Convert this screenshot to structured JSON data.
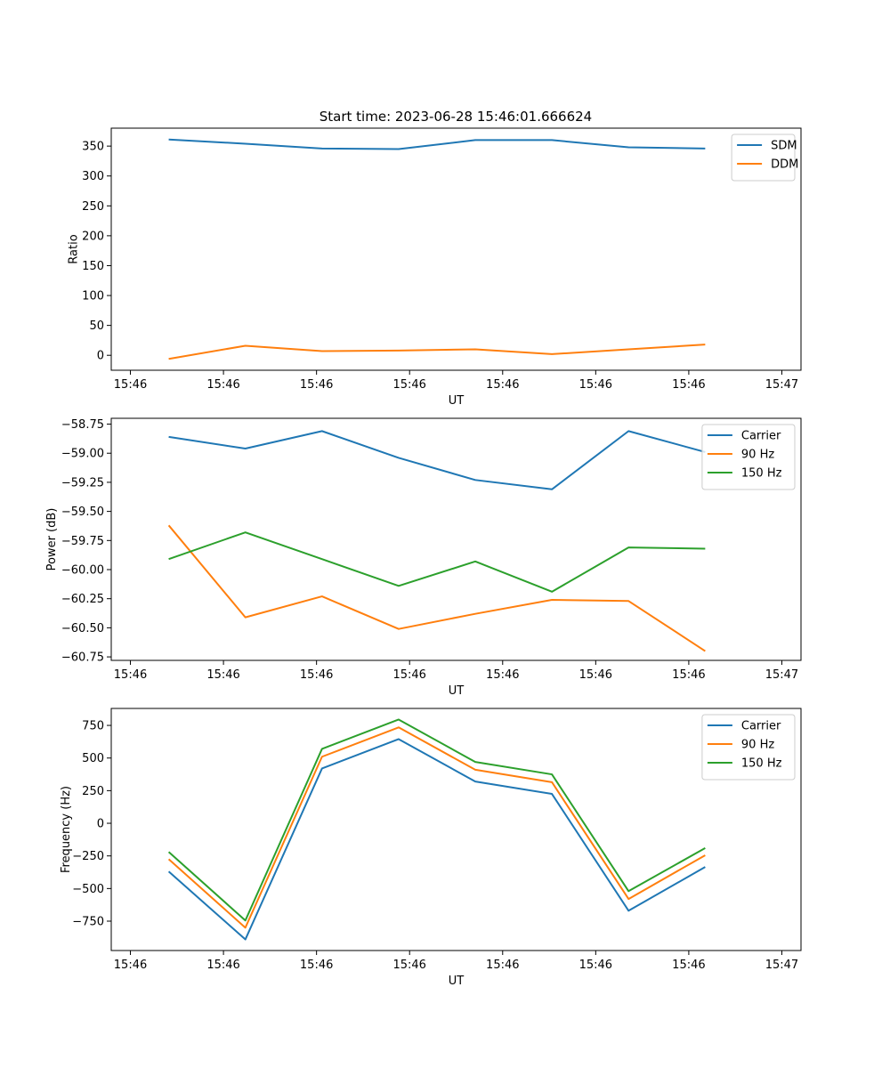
{
  "figure_title": "Start time: 2023-06-28 15:46:01.666624",
  "chart_data": [
    {
      "type": "line",
      "xlabel": "UT",
      "ylabel": "Ratio",
      "x_tick_labels": [
        "15:46",
        "15:46",
        "15:46",
        "15:46",
        "15:46",
        "15:46",
        "15:46"
      ],
      "x_tick_label_last": "15:47",
      "x": [
        1,
        2,
        3,
        4,
        5,
        6,
        7,
        8
      ],
      "xlim": [
        0.25,
        9.25
      ],
      "ylim": [
        -25,
        380
      ],
      "yticks": [
        0,
        50,
        100,
        150,
        200,
        250,
        300,
        350
      ],
      "ytick_labels": [
        "0",
        "50",
        "100",
        "150",
        "200",
        "250",
        "300",
        "350"
      ],
      "legend_position": "top-right",
      "series": [
        {
          "name": "SDM",
          "color": "#1f77b4",
          "values": [
            361,
            354,
            346,
            345,
            360,
            360,
            348,
            346
          ]
        },
        {
          "name": "DDM",
          "color": "#ff7f0e",
          "values": [
            -6,
            16,
            7,
            8,
            10,
            2,
            10,
            18
          ]
        }
      ]
    },
    {
      "type": "line",
      "xlabel": "UT",
      "ylabel": "Power (dB)",
      "x_tick_labels": [
        "15:46",
        "15:46",
        "15:46",
        "15:46",
        "15:46",
        "15:46",
        "15:46"
      ],
      "x_tick_label_last": "15:47",
      "x": [
        1,
        2,
        3,
        4,
        5,
        6,
        7,
        8
      ],
      "xlim": [
        0.25,
        9.25
      ],
      "ylim": [
        -60.78,
        -58.7
      ],
      "yticks": [
        -60.75,
        -60.5,
        -60.25,
        -60.0,
        -59.75,
        -59.5,
        -59.25,
        -59.0,
        -58.75
      ],
      "ytick_labels": [
        "−60.75",
        "−60.50",
        "−60.25",
        "−60.00",
        "−59.75",
        "−59.50",
        "−59.25",
        "−59.00",
        "−58.75"
      ],
      "legend_position": "top-right",
      "series": [
        {
          "name": "Carrier",
          "color": "#1f77b4",
          "values": [
            -58.86,
            -58.96,
            -58.81,
            -59.04,
            -59.23,
            -59.31,
            -58.81,
            -58.99
          ]
        },
        {
          "name": "90 Hz",
          "color": "#ff7f0e",
          "values": [
            -59.62,
            -60.41,
            -60.23,
            -60.51,
            -60.38,
            -60.26,
            -60.27,
            -60.7
          ]
        },
        {
          "name": "150 Hz",
          "color": "#2ca02c",
          "values": [
            -59.91,
            -59.68,
            -59.91,
            -60.14,
            -59.93,
            -60.19,
            -59.81,
            -59.82
          ]
        }
      ]
    },
    {
      "type": "line",
      "xlabel": "UT",
      "ylabel": "Frequency (Hz)",
      "x_tick_labels": [
        "15:46",
        "15:46",
        "15:46",
        "15:46",
        "15:46",
        "15:46",
        "15:46"
      ],
      "x_tick_label_last": "15:47",
      "x": [
        1,
        2,
        3,
        4,
        5,
        6,
        7,
        8
      ],
      "xlim": [
        0.25,
        9.25
      ],
      "ylim": [
        -975,
        880
      ],
      "yticks": [
        -750,
        -500,
        -250,
        0,
        250,
        500,
        750
      ],
      "ytick_labels": [
        "−750",
        "−500",
        "−250",
        "0",
        "250",
        "500",
        "750"
      ],
      "legend_position": "top-right",
      "series": [
        {
          "name": "Carrier",
          "color": "#1f77b4",
          "values": [
            -370,
            -890,
            420,
            645,
            320,
            225,
            -670,
            -335
          ]
        },
        {
          "name": "90 Hz",
          "color": "#ff7f0e",
          "values": [
            -275,
            -800,
            510,
            735,
            410,
            315,
            -580,
            -245
          ]
        },
        {
          "name": "150 Hz",
          "color": "#2ca02c",
          "values": [
            -220,
            -745,
            570,
            795,
            470,
            375,
            -520,
            -190
          ]
        }
      ]
    }
  ]
}
